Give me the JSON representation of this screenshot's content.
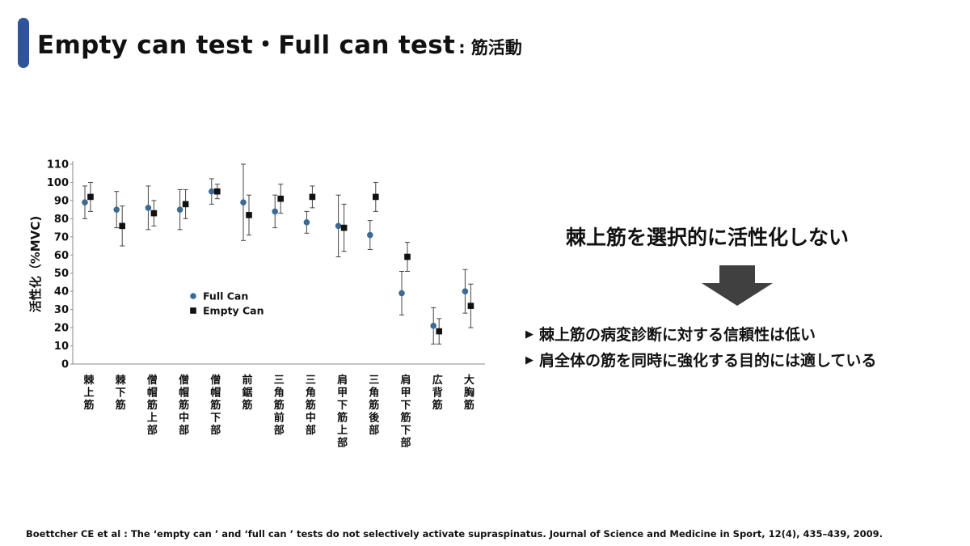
{
  "header": {
    "title": "Empty can test・Full can test",
    "subtitle": ": 筋活動",
    "accent_color": "#2f5597"
  },
  "chart_data": {
    "type": "scatter",
    "ylabel": "活性化（%MVC)",
    "ylim": [
      0,
      110
    ],
    "yticks": [
      0,
      10,
      20,
      30,
      40,
      50,
      60,
      70,
      80,
      90,
      100,
      110
    ],
    "categories": [
      "棘上筋",
      "棘下筋",
      "僧帽筋上部",
      "僧帽筋中部",
      "僧帽筋下部",
      "前鋸筋",
      "三角筋前部",
      "三角筋中部",
      "肩甲下筋上部",
      "三角筋後部",
      "肩甲下筋下部",
      "広背筋",
      "大胸筋"
    ],
    "legend_position": "center-left",
    "series": [
      {
        "name": "Full Can",
        "marker": "circle",
        "color": "#3b6a96",
        "values": [
          89,
          85,
          86,
          85,
          95,
          89,
          84,
          78,
          76,
          71,
          39,
          21,
          40
        ],
        "error": [
          9,
          10,
          12,
          11,
          7,
          21,
          9,
          6,
          17,
          8,
          12,
          10,
          12
        ]
      },
      {
        "name": "Empty Can",
        "marker": "square",
        "color": "#111111",
        "values": [
          92,
          76,
          83,
          88,
          95,
          82,
          91,
          92,
          75,
          92,
          59,
          18,
          32
        ],
        "error": [
          8,
          11,
          7,
          8,
          4,
          11,
          8,
          6,
          13,
          8,
          8,
          7,
          12
        ]
      }
    ]
  },
  "message": "棘上筋を選択的に活性化しない",
  "bullets": [
    "棘上筋の病変診断に対する信頼性は低い",
    "肩全体の筋を同時に強化する目的には適している"
  ],
  "citation": "Boettcher CE et al : The ‘empty can ’ and ‘full can ’ tests do not selectively activate supraspinatus. Journal of Science and Medicine in Sport, 12(4), 435–439,  2009."
}
